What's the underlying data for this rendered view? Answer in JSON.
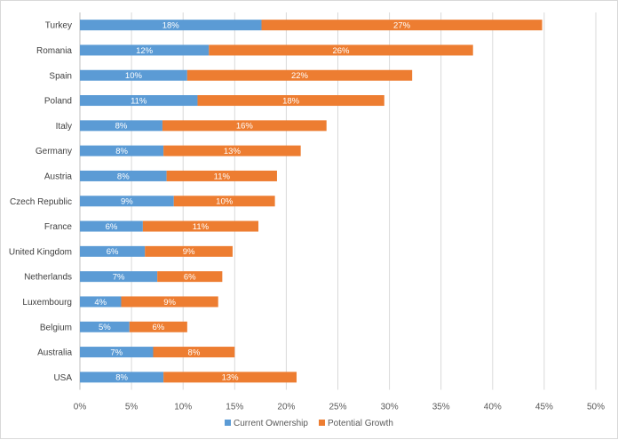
{
  "chart_data": {
    "type": "bar",
    "orientation": "horizontal",
    "stacked": true,
    "categories": [
      "Turkey",
      "Romania",
      "Spain",
      "Poland",
      "Italy",
      "Germany",
      "Austria",
      "Czech Republic",
      "France",
      "United Kingdom",
      "Netherlands",
      "Luxembourg",
      "Belgium",
      "Australia",
      "USA"
    ],
    "series": [
      {
        "name": "Current Ownership",
        "color": "#5b9bd5",
        "values": [
          17.6,
          12.5,
          10.4,
          11.4,
          8.0,
          8.1,
          8.4,
          9.1,
          6.1,
          6.3,
          7.5,
          4.0,
          4.8,
          7.1,
          8.1
        ],
        "labels": [
          "18%",
          "12%",
          "10%",
          "11%",
          "8%",
          "8%",
          "8%",
          "9%",
          "6%",
          "6%",
          "7%",
          "4%",
          "5%",
          "7%",
          "8%"
        ]
      },
      {
        "name": "Potential Growth",
        "color": "#ed7d31",
        "values": [
          27.2,
          25.6,
          21.8,
          18.1,
          15.9,
          13.3,
          10.7,
          9.8,
          11.2,
          8.5,
          6.3,
          9.4,
          5.6,
          7.9,
          12.9
        ],
        "labels": [
          "27%",
          "26%",
          "22%",
          "18%",
          "16%",
          "13%",
          "11%",
          "10%",
          "11%",
          "9%",
          "6%",
          "9%",
          "6%",
          "8%",
          "13%"
        ]
      }
    ],
    "x_ticks": [
      "0%",
      "5%",
      "10%",
      "15%",
      "20%",
      "25%",
      "30%",
      "35%",
      "40%",
      "45%",
      "50%"
    ],
    "xlim": [
      0,
      50
    ],
    "grid": true,
    "legend_position": "bottom"
  }
}
